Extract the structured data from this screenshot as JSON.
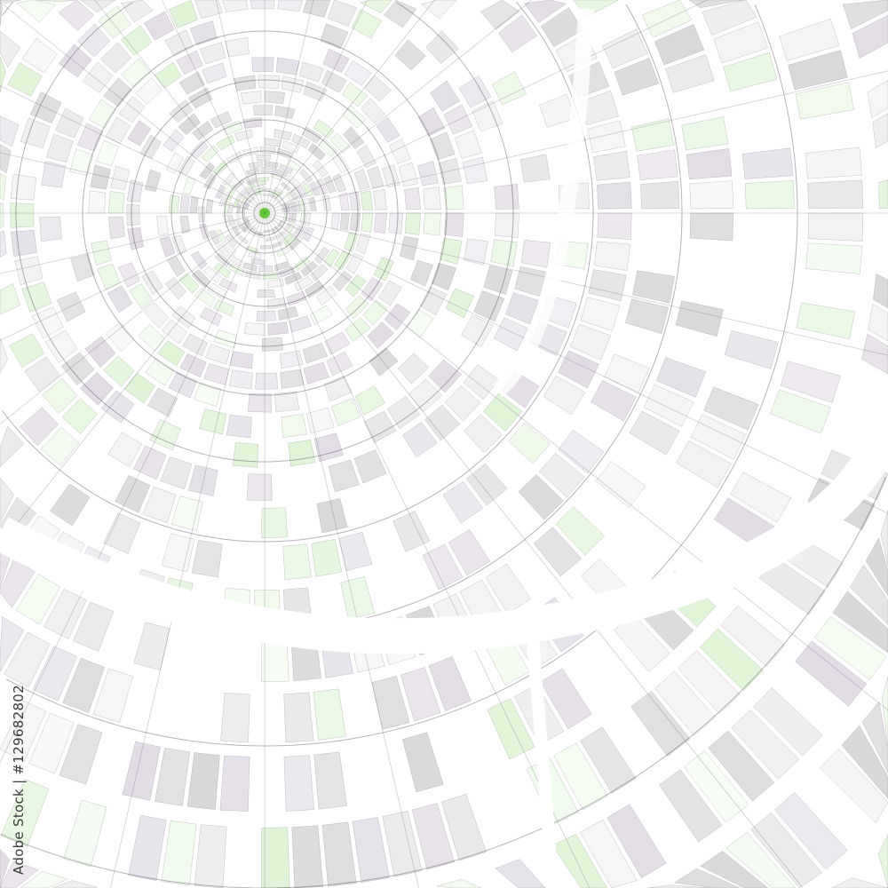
{
  "artwork": {
    "watermark": "Adobe Stock | #129682802",
    "colors": {
      "background": "#ffffff",
      "line": "#2a2430",
      "accent_green": "#4cc21a",
      "accent_purple": "#5a3d6a"
    }
  }
}
